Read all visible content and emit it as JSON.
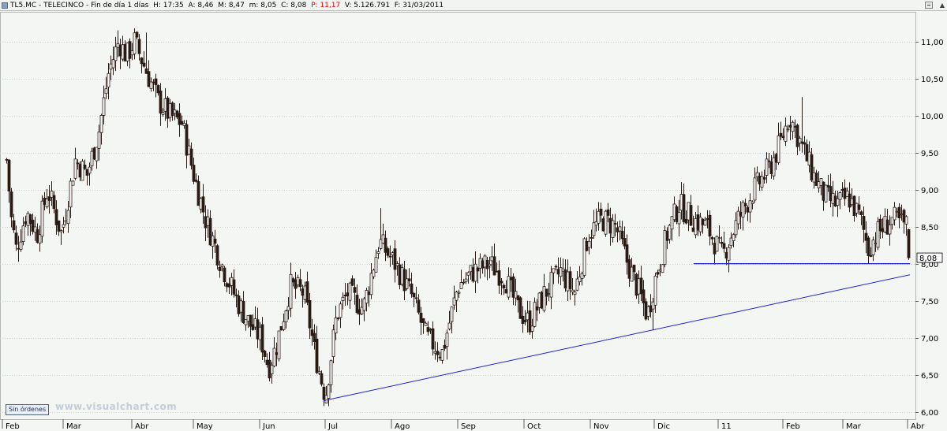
{
  "header": {
    "symbol": "TL5.MC",
    "name": "TELECINCO",
    "period": "Fin de día 1 días",
    "h_label": "H:",
    "h_value": "17:35",
    "a_label": "A:",
    "a_value": "8,46",
    "m_label": "M:",
    "m_value": "8,47",
    "min_label": "m:",
    "min_value": "8,05",
    "c_label": "C:",
    "c_value": "8,08",
    "p_label": "P:",
    "p_value": "11,17",
    "v_label": "V:",
    "v_value": "5.126.791",
    "f_label": "F:",
    "f_value": "31/03/2011"
  },
  "orders_label": "Sin órdenes",
  "watermark": "www.visualchart.com",
  "colors": {
    "background": "#f4f6f4",
    "candle": "#2a1a14",
    "trendline": "#2020d8",
    "support": "#2020d8",
    "grid": "#c8cec8",
    "price_label_p": "#e00000"
  },
  "chart_data": {
    "type": "candlestick",
    "ticker": "TL5.MC",
    "last_price_label": "8,08",
    "y_axis": {
      "ylim": [
        5.9,
        11.4
      ],
      "ticks": [
        "6,00",
        "6,50",
        "7,00",
        "7,50",
        "8,00",
        "8,50",
        "9,00",
        "9,50",
        "10,00",
        "10,50",
        "11,00"
      ],
      "tick_values": [
        6.0,
        6.5,
        7.0,
        7.5,
        8.0,
        8.5,
        9.0,
        9.5,
        10.0,
        10.5,
        11.0
      ],
      "position": "right"
    },
    "x_axis": {
      "labels": [
        "Feb",
        "Mar",
        "Abr",
        "May",
        "Jun",
        "Jul",
        "Ago",
        "Sep",
        "Oct",
        "Nov",
        "Dic",
        "11",
        "Feb",
        "Mar",
        "Abr"
      ],
      "bar_index": [
        3,
        80,
        167,
        245,
        329,
        412,
        496,
        580,
        664,
        748,
        829,
        910,
        992,
        1068,
        1150
      ]
    },
    "xlim": [
      0,
      1160
    ],
    "closes_by_segment": [
      {
        "from": 8,
        "to": 20,
        "path": [
          9.4,
          8.6,
          8.2
        ]
      },
      {
        "from": 20,
        "to": 60,
        "path": [
          8.2,
          8.7,
          8.4,
          9.0
        ]
      },
      {
        "from": 60,
        "to": 95,
        "path": [
          9.0,
          8.4,
          9.4
        ]
      },
      {
        "from": 95,
        "to": 125,
        "path": [
          9.4,
          9.2,
          9.8
        ]
      },
      {
        "from": 125,
        "to": 150,
        "path": [
          9.8,
          10.6,
          11.0
        ]
      },
      {
        "from": 150,
        "to": 170,
        "path": [
          11.0,
          10.8,
          11.0
        ]
      },
      {
        "from": 170,
        "to": 200,
        "path": [
          11.0,
          10.6,
          10.2
        ]
      },
      {
        "from": 200,
        "to": 230,
        "path": [
          10.2,
          10.0,
          9.9
        ]
      },
      {
        "from": 230,
        "to": 260,
        "path": [
          9.9,
          9.2,
          8.6
        ]
      },
      {
        "from": 260,
        "to": 300,
        "path": [
          8.6,
          8.0,
          7.5
        ]
      },
      {
        "from": 300,
        "to": 330,
        "path": [
          7.5,
          7.2,
          7.0
        ]
      },
      {
        "from": 330,
        "to": 350,
        "path": [
          7.0,
          6.6,
          6.9
        ]
      },
      {
        "from": 350,
        "to": 385,
        "path": [
          6.9,
          7.7,
          7.6
        ]
      },
      {
        "from": 385,
        "to": 412,
        "path": [
          7.6,
          6.8,
          6.2
        ]
      },
      {
        "from": 412,
        "to": 440,
        "path": [
          6.2,
          7.3,
          7.6
        ]
      },
      {
        "from": 440,
        "to": 480,
        "path": [
          7.6,
          7.4,
          8.3
        ]
      },
      {
        "from": 480,
        "to": 520,
        "path": [
          8.3,
          8.0,
          7.6
        ]
      },
      {
        "from": 520,
        "to": 560,
        "path": [
          7.6,
          7.0,
          6.8
        ]
      },
      {
        "from": 560,
        "to": 600,
        "path": [
          6.8,
          7.7,
          7.9
        ]
      },
      {
        "from": 600,
        "to": 640,
        "path": [
          7.9,
          8.0,
          7.8
        ]
      },
      {
        "from": 640,
        "to": 670,
        "path": [
          7.8,
          7.4,
          7.2
        ]
      },
      {
        "from": 670,
        "to": 710,
        "path": [
          7.2,
          7.6,
          7.9
        ]
      },
      {
        "from": 710,
        "to": 745,
        "path": [
          7.9,
          7.6,
          8.4
        ]
      },
      {
        "from": 745,
        "to": 780,
        "path": [
          8.4,
          8.6,
          8.5
        ]
      },
      {
        "from": 780,
        "to": 810,
        "path": [
          8.5,
          8.0,
          7.6
        ]
      },
      {
        "from": 810,
        "to": 830,
        "path": [
          7.6,
          7.3,
          7.8
        ]
      },
      {
        "from": 830,
        "to": 860,
        "path": [
          7.8,
          8.4,
          8.8
        ]
      },
      {
        "from": 860,
        "to": 895,
        "path": [
          8.8,
          8.6,
          8.5
        ]
      },
      {
        "from": 895,
        "to": 935,
        "path": [
          8.5,
          8.1,
          8.6
        ]
      },
      {
        "from": 935,
        "to": 975,
        "path": [
          8.6,
          9.0,
          9.3
        ]
      },
      {
        "from": 975,
        "to": 1000,
        "path": [
          9.3,
          9.6,
          10.0
        ]
      },
      {
        "from": 1000,
        "to": 1030,
        "path": [
          10.0,
          9.6,
          9.2
        ]
      },
      {
        "from": 1030,
        "to": 1060,
        "path": [
          9.2,
          8.9,
          8.8
        ]
      },
      {
        "from": 1060,
        "to": 1090,
        "path": [
          8.8,
          8.9,
          8.6
        ]
      },
      {
        "from": 1090,
        "to": 1110,
        "path": [
          8.6,
          8.2,
          8.4
        ]
      },
      {
        "from": 1110,
        "to": 1150,
        "path": [
          8.4,
          8.6,
          8.5
        ]
      },
      {
        "from": 1150,
        "to": 1153,
        "path": [
          8.5,
          8.08
        ]
      }
    ],
    "extremes": [
      {
        "bar": 148,
        "high": 11.15
      },
      {
        "bar": 185,
        "high": 11.12
      },
      {
        "bar": 412,
        "low": 6.15
      },
      {
        "bar": 483,
        "high": 8.75
      },
      {
        "bar": 560,
        "low": 6.65
      },
      {
        "bar": 826,
        "low": 7.1
      },
      {
        "bar": 1015,
        "high": 10.25
      }
    ],
    "trendline": {
      "x1": 410,
      "y1": 6.15,
      "x2": 1153,
      "y2": 7.85
    },
    "support_line": {
      "x1": 879,
      "x2": 1153,
      "y": 8.0
    }
  }
}
